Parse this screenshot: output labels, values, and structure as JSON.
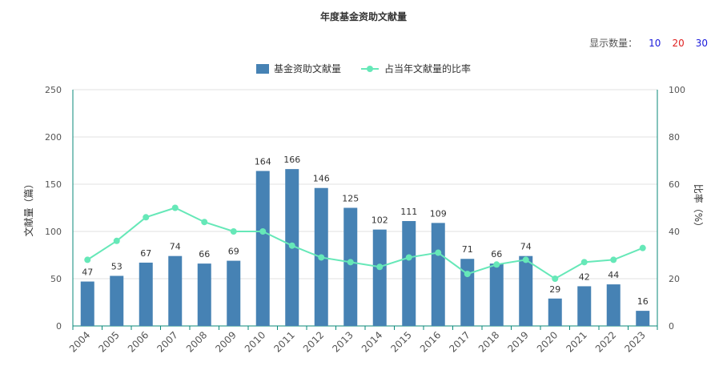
{
  "title": "年度基金资助文献量",
  "display_count": {
    "label": "显示数量：",
    "options": [
      {
        "value": "10",
        "color": "#1a1adb"
      },
      {
        "value": "20",
        "color": "#e02020"
      },
      {
        "value": "30",
        "color": "#1a1adb"
      }
    ]
  },
  "legend": [
    {
      "name": "基金资助文献量",
      "color": "#4682b4"
    },
    {
      "name": "占当年文献量的比率",
      "color": "#66e8b8"
    }
  ],
  "colors": {
    "bar": "#4682b4",
    "line": "#66e8b8",
    "axis": "#0a8a7a",
    "grid": "#e2e2e2"
  },
  "chart_data": {
    "type": "bar+line",
    "title": "年度基金资助文献量",
    "categories": [
      "2004",
      "2005",
      "2006",
      "2007",
      "2008",
      "2009",
      "2010",
      "2011",
      "2012",
      "2013",
      "2014",
      "2015",
      "2016",
      "2017",
      "2018",
      "2019",
      "2020",
      "2021",
      "2022",
      "2023"
    ],
    "series": [
      {
        "name": "基金资助文献量",
        "type": "bar",
        "axis": "left",
        "values": [
          47,
          53,
          67,
          74,
          66,
          69,
          164,
          166,
          146,
          125,
          102,
          111,
          109,
          71,
          66,
          74,
          29,
          42,
          44,
          16
        ]
      },
      {
        "name": "占当年文献量的比率",
        "type": "line",
        "axis": "right",
        "values": [
          28,
          36,
          46,
          50,
          44,
          40,
          40,
          34,
          29,
          27,
          25,
          29,
          31,
          22,
          26,
          28,
          20,
          27,
          28,
          33
        ]
      }
    ],
    "ylabel_left": "文献量（篇）",
    "ylabel_right": "比率（%）",
    "ylim_left": [
      0,
      250
    ],
    "yticks_left": [
      "0",
      "50",
      "100",
      "150",
      "200",
      "250"
    ],
    "ylim_right": [
      0,
      100
    ],
    "yticks_right": [
      "0",
      "20",
      "40",
      "60",
      "80",
      "100"
    ],
    "grid": true,
    "legend_position": "top-center"
  }
}
